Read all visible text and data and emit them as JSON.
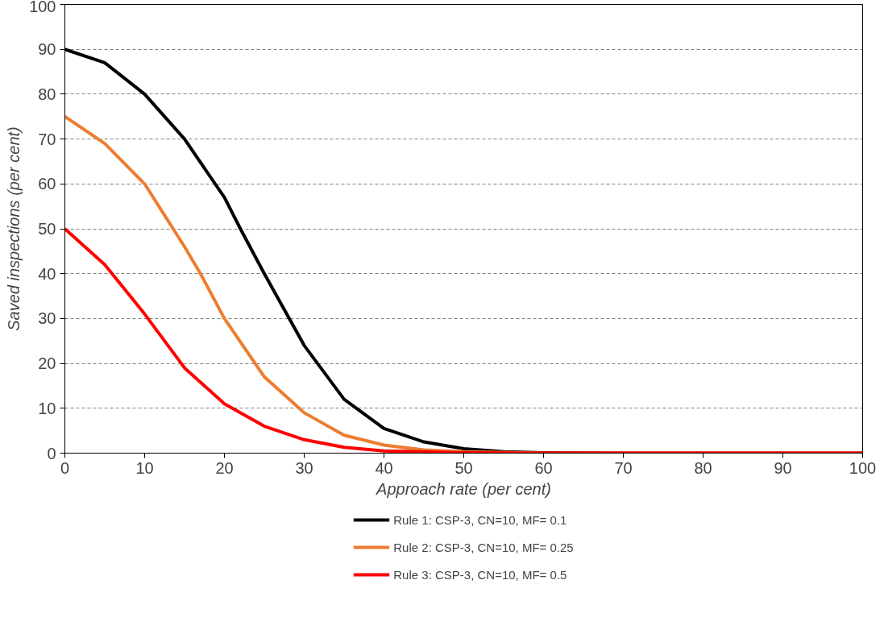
{
  "chart_data": {
    "type": "line",
    "xlabel": "Approach rate (per cent)",
    "ylabel": "Saved inspections (per cent)",
    "xlim": [
      0,
      100
    ],
    "xticks": [
      0,
      10,
      20,
      30,
      40,
      50,
      60,
      70,
      80,
      90,
      100
    ],
    "ylim": [
      0,
      100
    ],
    "yticks": [
      0,
      10,
      20,
      30,
      40,
      50,
      60,
      70,
      80,
      90,
      100
    ],
    "grid": "y",
    "legend": "bottom",
    "line_style": "solid",
    "series": [
      {
        "name": "Rule 1: CSP-3, CN=10, MF= 0.1",
        "color": "#000000",
        "x": [
          0,
          5,
          10,
          15,
          20,
          22,
          25,
          30,
          35,
          40,
          45,
          50,
          55,
          60,
          70,
          100
        ],
        "values": [
          90,
          87,
          80,
          70,
          57,
          50,
          40,
          24,
          12,
          5.5,
          2.5,
          1,
          0.3,
          0.1,
          0,
          0
        ]
      },
      {
        "name": "Rule 2: CSP-3, CN=10, MF= 0.25",
        "color": "#ed7d31",
        "x": [
          0,
          5,
          10,
          15,
          17,
          20,
          25,
          30,
          35,
          40,
          45,
          50,
          60,
          100
        ],
        "values": [
          75,
          69,
          60,
          46,
          40,
          30,
          17,
          9,
          4,
          1.8,
          0.7,
          0.3,
          0,
          0
        ]
      },
      {
        "name": "Rule 3: CSP-3, CN=10, MF= 0.5",
        "color": "#ff0000",
        "x": [
          0,
          5,
          10,
          15,
          20,
          25,
          30,
          35,
          40,
          50,
          60,
          100
        ],
        "values": [
          50,
          42,
          31,
          19,
          11,
          6,
          3,
          1.3,
          0.5,
          0.1,
          0,
          0
        ]
      }
    ]
  }
}
